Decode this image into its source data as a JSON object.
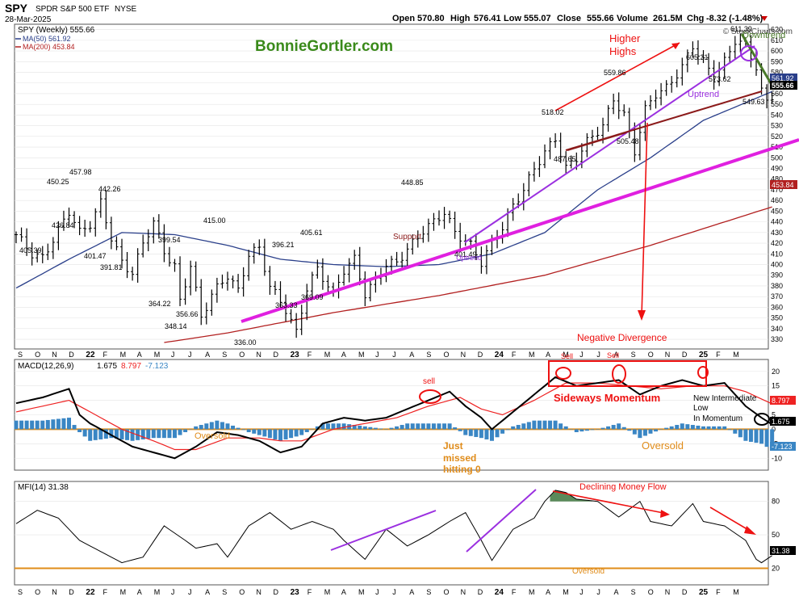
{
  "header": {
    "symbol": "SPY",
    "name": "SPDR S&P 500 ETF",
    "exchange": "NYSE",
    "date": "28-Mar-2025",
    "open_label": "Open",
    "open": "570.80",
    "high_label": "High",
    "high": "576.41",
    "low_label": "Low",
    "low": "555.07",
    "close_label": "Close",
    "close": "555.66",
    "volume_label": "Volume",
    "volume": "261.5M",
    "chg_label": "Chg",
    "chg": "-8.32 (-1.48%)",
    "copyright": "© StockCharts.com"
  },
  "watermark": "BonnieGortler.com",
  "colors": {
    "price": "#000000",
    "ma50": "#2a3f8a",
    "ma200": "#b22020",
    "uptrend": "#9b30e0",
    "support": "#e020e0",
    "macd_hist": "#3a86c4",
    "zero_line": "#e08c1a",
    "annotation_red": "#dd1111",
    "mfi_fill": "#5a8a5a"
  },
  "price_panel": {
    "legend_title": "SPY (Weekly) 555.66",
    "legend_ma50": "MA(50) 561.92",
    "legend_ma200": "MA(200) 453.84",
    "y_ticks": [
      "620",
      "610",
      "600",
      "590",
      "580",
      "570",
      "560",
      "550",
      "540",
      "530",
      "520",
      "510",
      "500",
      "490",
      "480",
      "470",
      "460",
      "450",
      "440",
      "430",
      "420",
      "410",
      "400",
      "390",
      "380",
      "370",
      "360",
      "350",
      "340",
      "330"
    ],
    "y_min": 324,
    "y_max": 622,
    "last_price_tag": "555.66",
    "ma50_tag": "561.92",
    "ma200_tag": "453.84",
    "price_labels": [
      "405.39",
      "450.25",
      "426.84",
      "457.98",
      "401.47",
      "391.81",
      "442.26",
      "364.22",
      "399.54",
      "348.14",
      "356.66",
      "415.00",
      "336.00",
      "396.21",
      "363.33",
      "405.61",
      "369.09",
      "448.85",
      "401.49",
      "518.02",
      "487.65",
      "559.86",
      "505.48",
      "605.21",
      "573.62",
      "611.39",
      "549.63"
    ],
    "annotations": {
      "higher_highs_1": "Higher",
      "higher_highs_2": "Highs",
      "uptrend_upper": "Uptrend",
      "uptrend_lower": "Uptrend",
      "support": "Support",
      "negative_divergence": "Negative Divergence",
      "downtrend": "Downtrend"
    }
  },
  "x_axis": {
    "labels": [
      "S",
      "O",
      "N",
      "D",
      "22",
      "F",
      "M",
      "A",
      "M",
      "J",
      "J",
      "A",
      "S",
      "O",
      "N",
      "D",
      "23",
      "F",
      "M",
      "A",
      "M",
      "J",
      "J",
      "A",
      "S",
      "O",
      "N",
      "D",
      "24",
      "F",
      "M",
      "A",
      "M",
      "J",
      "J",
      "A",
      "S",
      "O",
      "N",
      "D",
      "25",
      "F",
      "M"
    ]
  },
  "macd_panel": {
    "legend_title": "MACD(12,26,9)",
    "macd_value": "1.675",
    "signal_value": "8.797",
    "hist_value": "-7.123",
    "y_ticks": [
      "20",
      "15",
      "10",
      "5",
      "0",
      "-5",
      "-10"
    ],
    "y_min": -13,
    "y_max": 23,
    "tag_signal": "8.797",
    "tag_macd": "1.675",
    "tag_hist": "-7.123",
    "annotations": {
      "sell_1": "sell",
      "sell_2": "Sell",
      "sell_3": "Sell",
      "sideways": "Sideways Momentum",
      "oversold_1": "Oversold",
      "oversold_2": "Oversold",
      "just_missed_1": "Just",
      "just_missed_2": "missed",
      "just_missed_3": "hitting 0",
      "new_low_1": "New Intermediate",
      "new_low_2": "Low",
      "new_low_3": "In Momentum"
    }
  },
  "mfi_panel": {
    "legend_title": "MFI(14) 31.38",
    "y_ticks": [
      "80",
      "50",
      "20"
    ],
    "y_min": 8,
    "y_max": 95,
    "tag_value": "31.38",
    "annotations": {
      "declining": "Declining Money Flow",
      "oversold": "Oversold"
    }
  },
  "chart_data": {
    "type": "line",
    "title": "SPY (Weekly) 555.66",
    "series": [
      {
        "name": "SPY (Weekly)",
        "anchors": [
          [
            0,
            428
          ],
          [
            3,
            410
          ],
          [
            5,
            406
          ],
          [
            8,
            432
          ],
          [
            10,
            450
          ],
          [
            12,
            430
          ],
          [
            14,
            438
          ],
          [
            16,
            458
          ],
          [
            18,
            425
          ],
          [
            20,
            402
          ],
          [
            22,
            392
          ],
          [
            24,
            420
          ],
          [
            26,
            440
          ],
          [
            28,
            412
          ],
          [
            30,
            398
          ],
          [
            31,
            365
          ],
          [
            33,
            400
          ],
          [
            35,
            350
          ],
          [
            37,
            372
          ],
          [
            40,
            390
          ],
          [
            42,
            375
          ],
          [
            44,
            410
          ],
          [
            46,
            415
          ],
          [
            48,
            380
          ],
          [
            51,
            358
          ],
          [
            53,
            336
          ],
          [
            55,
            378
          ],
          [
            57,
            396
          ],
          [
            60,
            372
          ],
          [
            62,
            395
          ],
          [
            64,
            405
          ],
          [
            66,
            372
          ],
          [
            68,
            385
          ],
          [
            70,
            400
          ],
          [
            72,
            402
          ],
          [
            75,
            420
          ],
          [
            77,
            432
          ],
          [
            79,
            440
          ],
          [
            81,
            449
          ],
          [
            83,
            430
          ],
          [
            86,
            418
          ],
          [
            88,
            402
          ],
          [
            90,
            420
          ],
          [
            92,
            435
          ],
          [
            94,
            455
          ],
          [
            96,
            470
          ],
          [
            98,
            490
          ],
          [
            100,
            505
          ],
          [
            102,
            518
          ],
          [
            104,
            490
          ],
          [
            106,
            500
          ],
          [
            108,
            515
          ],
          [
            111,
            530
          ],
          [
            113,
            555
          ],
          [
            115,
            540
          ],
          [
            117,
            506
          ],
          [
            119,
            545
          ],
          [
            121,
            560
          ],
          [
            123,
            565
          ],
          [
            126,
            585
          ],
          [
            128,
            605
          ],
          [
            130,
            590
          ],
          [
            132,
            575
          ],
          [
            134,
            590
          ],
          [
            136,
            610
          ],
          [
            138,
            605
          ],
          [
            140,
            585
          ],
          [
            141,
            562
          ],
          [
            142,
            552
          ],
          [
            143,
            558
          ]
        ]
      },
      {
        "name": "MA(50)",
        "anchors": [
          [
            0,
            378
          ],
          [
            10,
            405
          ],
          [
            20,
            430
          ],
          [
            30,
            428
          ],
          [
            40,
            418
          ],
          [
            50,
            405
          ],
          [
            60,
            400
          ],
          [
            70,
            398
          ],
          [
            80,
            400
          ],
          [
            90,
            410
          ],
          [
            100,
            430
          ],
          [
            110,
            470
          ],
          [
            120,
            500
          ],
          [
            130,
            535
          ],
          [
            143,
            562
          ]
        ]
      },
      {
        "name": "MA(200)",
        "anchors": [
          [
            28,
            327
          ],
          [
            40,
            336
          ],
          [
            60,
            355
          ],
          [
            80,
            371
          ],
          [
            100,
            390
          ],
          [
            120,
            418
          ],
          [
            143,
            454
          ]
        ]
      },
      {
        "name": "MACD",
        "anchors": [
          [
            0,
            9
          ],
          [
            5,
            11
          ],
          [
            10,
            14
          ],
          [
            12,
            5
          ],
          [
            14,
            2
          ],
          [
            18,
            -2
          ],
          [
            22,
            -6
          ],
          [
            26,
            -8
          ],
          [
            30,
            -10
          ],
          [
            34,
            -6
          ],
          [
            38,
            -1
          ],
          [
            42,
            -2
          ],
          [
            46,
            -4
          ],
          [
            50,
            -8
          ],
          [
            54,
            -6
          ],
          [
            58,
            2
          ],
          [
            62,
            4
          ],
          [
            66,
            3
          ],
          [
            70,
            4
          ],
          [
            74,
            7
          ],
          [
            78,
            10
          ],
          [
            82,
            13
          ],
          [
            85,
            8
          ],
          [
            88,
            4
          ],
          [
            90,
            0
          ],
          [
            94,
            6
          ],
          [
            98,
            12
          ],
          [
            102,
            18
          ],
          [
            106,
            15
          ],
          [
            110,
            16
          ],
          [
            114,
            17
          ],
          [
            118,
            12
          ],
          [
            122,
            15
          ],
          [
            126,
            17
          ],
          [
            130,
            15
          ],
          [
            134,
            16
          ],
          [
            138,
            8
          ],
          [
            141,
            4
          ],
          [
            143,
            1.675
          ]
        ]
      },
      {
        "name": "Signal",
        "anchors": [
          [
            0,
            6
          ],
          [
            5,
            8
          ],
          [
            10,
            10
          ],
          [
            14,
            6
          ],
          [
            20,
            0
          ],
          [
            26,
            -4
          ],
          [
            30,
            -7
          ],
          [
            34,
            -7
          ],
          [
            40,
            -3
          ],
          [
            46,
            -3
          ],
          [
            50,
            -4
          ],
          [
            54,
            -4
          ],
          [
            60,
            0
          ],
          [
            66,
            2
          ],
          [
            72,
            4
          ],
          [
            78,
            8
          ],
          [
            84,
            11
          ],
          [
            88,
            7
          ],
          [
            92,
            5
          ],
          [
            98,
            10
          ],
          [
            104,
            16
          ],
          [
            110,
            16
          ],
          [
            116,
            15
          ],
          [
            122,
            14
          ],
          [
            128,
            15
          ],
          [
            134,
            15
          ],
          [
            138,
            13
          ],
          [
            143,
            8.797
          ]
        ]
      },
      {
        "name": "Histogram",
        "anchors": [
          [
            0,
            3
          ],
          [
            5,
            3
          ],
          [
            10,
            4
          ],
          [
            12,
            -1
          ],
          [
            14,
            -4
          ],
          [
            18,
            -3
          ],
          [
            22,
            -4
          ],
          [
            26,
            -3
          ],
          [
            30,
            -3
          ],
          [
            34,
            1
          ],
          [
            38,
            3
          ],
          [
            40,
            2
          ],
          [
            44,
            -1
          ],
          [
            48,
            -3
          ],
          [
            50,
            -4
          ],
          [
            54,
            -2
          ],
          [
            58,
            2
          ],
          [
            62,
            2
          ],
          [
            66,
            1
          ],
          [
            70,
            0
          ],
          [
            74,
            2
          ],
          [
            78,
            2
          ],
          [
            82,
            2
          ],
          [
            85,
            -2
          ],
          [
            88,
            -3
          ],
          [
            90,
            -4
          ],
          [
            94,
            1
          ],
          [
            98,
            3
          ],
          [
            102,
            3
          ],
          [
            106,
            -1
          ],
          [
            110,
            0
          ],
          [
            114,
            2
          ],
          [
            118,
            -3
          ],
          [
            122,
            0
          ],
          [
            126,
            2
          ],
          [
            130,
            1
          ],
          [
            134,
            1
          ],
          [
            138,
            -4
          ],
          [
            141,
            -5
          ],
          [
            143,
            -7.123
          ]
        ]
      },
      {
        "name": "MFI(14)",
        "anchors": [
          [
            0,
            60
          ],
          [
            4,
            72
          ],
          [
            8,
            65
          ],
          [
            12,
            45
          ],
          [
            16,
            35
          ],
          [
            20,
            25
          ],
          [
            24,
            30
          ],
          [
            28,
            58
          ],
          [
            32,
            45
          ],
          [
            34,
            38
          ],
          [
            38,
            42
          ],
          [
            40,
            30
          ],
          [
            44,
            58
          ],
          [
            48,
            70
          ],
          [
            52,
            55
          ],
          [
            56,
            62
          ],
          [
            60,
            55
          ],
          [
            62,
            45
          ],
          [
            66,
            28
          ],
          [
            70,
            55
          ],
          [
            74,
            40
          ],
          [
            78,
            50
          ],
          [
            82,
            62
          ],
          [
            85,
            70
          ],
          [
            88,
            45
          ],
          [
            90,
            27
          ],
          [
            94,
            55
          ],
          [
            98,
            65
          ],
          [
            100,
            80
          ],
          [
            102,
            90
          ],
          [
            104,
            88
          ],
          [
            106,
            82
          ],
          [
            110,
            80
          ],
          [
            114,
            66
          ],
          [
            118,
            80
          ],
          [
            120,
            62
          ],
          [
            124,
            58
          ],
          [
            128,
            78
          ],
          [
            130,
            62
          ],
          [
            134,
            58
          ],
          [
            138,
            45
          ],
          [
            140,
            28
          ],
          [
            141,
            25
          ],
          [
            143,
            31.38
          ]
        ]
      }
    ],
    "xlabel": "",
    "ylabel": ""
  }
}
